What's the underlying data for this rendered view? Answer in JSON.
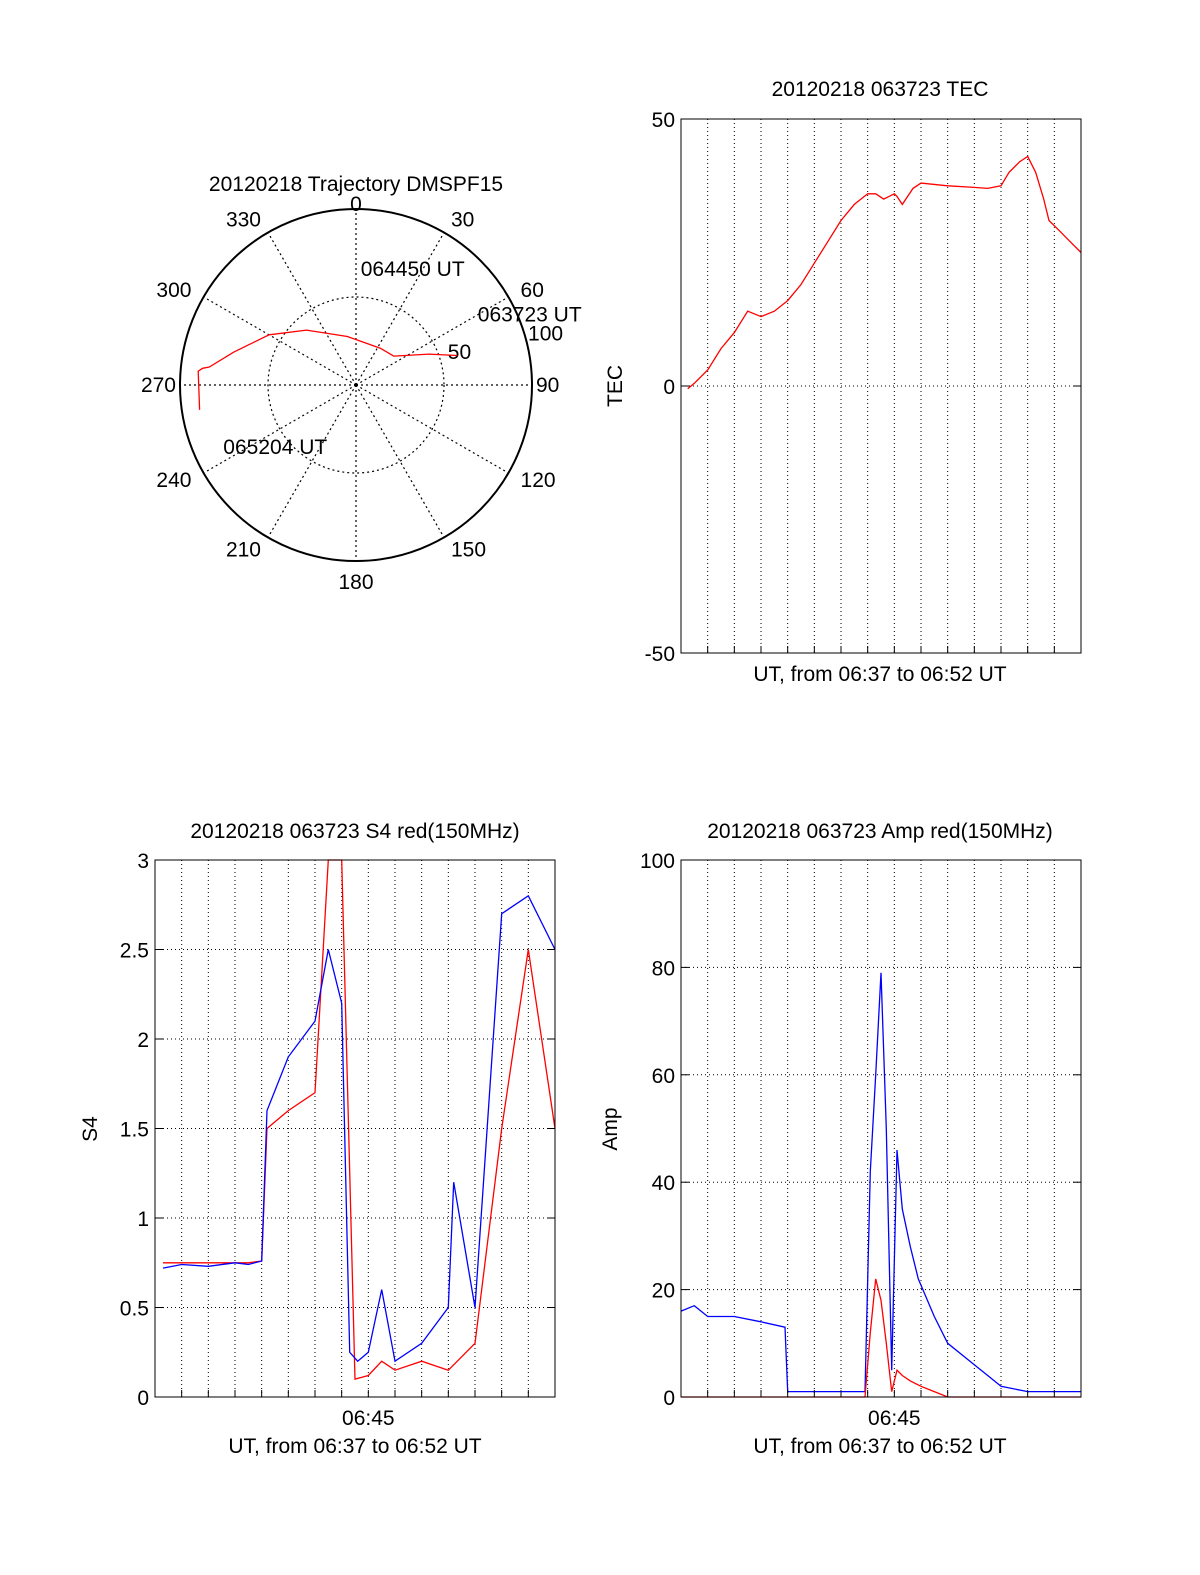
{
  "colors": {
    "red": "#ff0000",
    "blue": "#0000ff",
    "axis": "#000000",
    "grid": "#000000"
  },
  "chart_data": [
    {
      "id": "polar",
      "type": "polar-trajectory",
      "title": "20120218 Trajectory DMSPF15",
      "angle_labels": [
        "0",
        "30",
        "60",
        "90",
        "120",
        "150",
        "180",
        "210",
        "240",
        "270",
        "300",
        "330"
      ],
      "radial_labels": [
        "50",
        "100"
      ],
      "radial_max": 100,
      "trajectory": [
        {
          "az": 73.8,
          "zen": 60
        },
        {
          "az": 67.0,
          "zen": 45
        },
        {
          "az": 52.5,
          "zen": 27
        },
        {
          "az": 33.0,
          "zen": 25
        },
        {
          "az": 350,
          "zen": 28
        },
        {
          "az": 318,
          "zen": 42
        },
        {
          "az": 300,
          "zen": 57
        },
        {
          "az": 285,
          "zen": 72
        },
        {
          "az": 277,
          "zen": 84
        },
        {
          "az": 276.2,
          "zen": 87.7
        },
        {
          "az": 275,
          "zen": 90
        },
        {
          "az": 261,
          "zen": 90
        }
      ],
      "annotations": [
        {
          "text": "063723 UT",
          "az": 62.5,
          "zen": 78
        },
        {
          "text": "064450 UT",
          "az": 2.5,
          "zen": 62
        },
        {
          "text": "065204 UT",
          "az": 242.5,
          "zen": 85
        }
      ]
    },
    {
      "id": "tec",
      "type": "line",
      "title": "20120218 063723 TEC",
      "ylabel": "TEC",
      "xlabel": "UT, from 06:37 to 06:52 UT",
      "ylim": [
        -50,
        50
      ],
      "yticks": [
        -50,
        0,
        50
      ],
      "xticks": [],
      "series": [
        {
          "color": "red",
          "x": [
            0.25,
            0.5,
            1,
            1.5,
            2,
            2.5,
            3,
            3.5,
            4,
            4.5,
            5,
            5.5,
            6,
            6.5,
            7,
            7.3,
            7.6,
            8,
            8.1,
            8.3,
            8.7,
            9,
            10,
            11,
            11.5,
            12,
            12.3,
            12.7,
            13,
            13.3,
            13.6,
            13.8,
            14.2,
            14.6,
            15
          ],
          "y": [
            -0.5,
            0.5,
            3,
            7,
            10,
            14,
            13,
            14,
            16,
            19,
            23,
            27,
            31,
            34,
            36,
            36,
            35,
            36,
            35.5,
            34,
            37,
            38,
            37.5,
            37.2,
            37,
            37.5,
            40,
            42,
            43,
            40,
            35,
            31,
            29,
            27,
            25
          ]
        }
      ]
    },
    {
      "id": "s4",
      "type": "line",
      "title": "20120218 063723 S4 red(150MHz)",
      "ylabel": "S4",
      "xlabel": "UT, from 06:37 to 06:52 UT",
      "ylim": [
        0,
        3
      ],
      "yticks": [
        "0",
        "0.5",
        "1",
        "1.5",
        "2",
        "2.5",
        "3"
      ],
      "xtick_labels": [
        {
          "x": 8,
          "label": "06:45"
        }
      ],
      "series": [
        {
          "color": "red",
          "x": [
            0.3,
            1,
            2,
            3,
            3.5,
            4,
            4.2,
            5,
            6,
            6.5,
            7,
            7.5,
            8,
            8.5,
            9,
            10,
            11,
            11.2,
            12,
            13,
            14,
            15
          ],
          "y": [
            0.75,
            0.75,
            0.75,
            0.75,
            0.75,
            0.76,
            1.5,
            1.6,
            1.7,
            3.0,
            3.0,
            0.1,
            0.12,
            0.2,
            0.15,
            0.2,
            0.15,
            0.18,
            0.3,
            1.5,
            2.5,
            1.5
          ]
        },
        {
          "color": "blue",
          "x": [
            0.3,
            1,
            2,
            3,
            3.5,
            4,
            4.2,
            5,
            6,
            6.5,
            7,
            7.3,
            7.6,
            8,
            8.5,
            9,
            10,
            10.5,
            11,
            11.2,
            12,
            13,
            14,
            15
          ],
          "y": [
            0.72,
            0.74,
            0.73,
            0.75,
            0.74,
            0.76,
            1.6,
            1.9,
            2.1,
            2.5,
            2.2,
            0.25,
            0.2,
            0.25,
            0.6,
            0.2,
            0.3,
            0.4,
            0.5,
            1.2,
            0.5,
            2.7,
            2.8,
            2.5
          ]
        }
      ]
    },
    {
      "id": "amp",
      "type": "line",
      "title": "20120218 063723 Amp red(150MHz)",
      "ylabel": "Amp",
      "xlabel": "UT, from 06:37 to 06:52 UT",
      "ylim": [
        0,
        100
      ],
      "yticks": [
        "0",
        "20",
        "40",
        "60",
        "80",
        "100"
      ],
      "xtick_labels": [
        {
          "x": 8,
          "label": "06:45"
        }
      ],
      "series": [
        {
          "color": "blue",
          "x": [
            0,
            0.5,
            1,
            2,
            3,
            3.9,
            4,
            5,
            6,
            6.9,
            7.1,
            7.3,
            7.5,
            7.7,
            7.9,
            8.1,
            8.3,
            8.6,
            8.9,
            9.5,
            10,
            11,
            11.5,
            12,
            13,
            14,
            15
          ],
          "y": [
            16,
            17,
            15,
            15,
            14,
            13,
            1,
            1,
            1,
            1,
            42,
            60,
            79,
            50,
            5,
            46,
            35,
            28,
            22,
            15,
            10,
            6,
            4,
            2,
            1,
            1,
            1
          ]
        },
        {
          "color": "red",
          "x": [
            0,
            6.9,
            7.1,
            7.3,
            7.5,
            7.7,
            7.9,
            8.1,
            8.3,
            8.6,
            9,
            9.5,
            10,
            15
          ],
          "y": [
            0,
            0,
            12,
            22,
            18,
            10,
            1,
            5,
            4,
            3,
            2,
            1,
            0,
            0
          ]
        }
      ]
    }
  ]
}
